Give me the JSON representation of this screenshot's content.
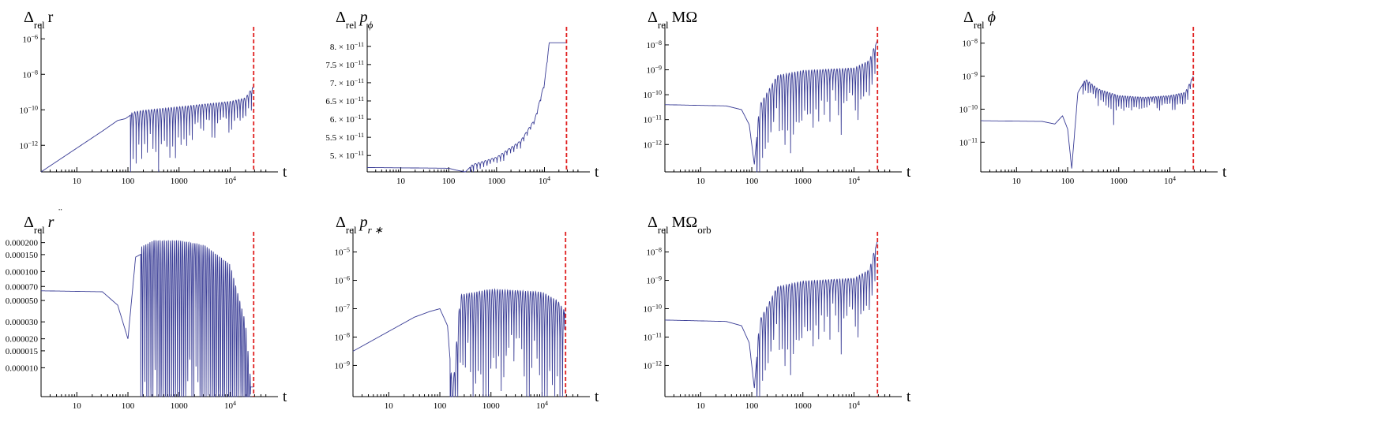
{
  "charts": [
    {
      "id": "panel-delta-r",
      "title_main": "Δ",
      "title_sub": "rel",
      "title_rest": "r",
      "title_italic": false,
      "title_decor": "none",
      "xlabel": "t",
      "scale": "log",
      "yticks": [
        {
          "v": -6,
          "m": "10",
          "e": "−6"
        },
        {
          "v": -8,
          "m": "10",
          "e": "−8"
        },
        {
          "v": -10,
          "m": "10",
          "e": "−10"
        },
        {
          "v": -12,
          "m": "10",
          "e": "−12"
        }
      ],
      "xticks": [
        {
          "v": 1,
          "label": "10"
        },
        {
          "v": 2,
          "label": "100"
        },
        {
          "v": 3,
          "label": "1000"
        },
        {
          "v": 4,
          "label": "10",
          "e": "4"
        }
      ],
      "ymin": -13.5,
      "ymax": -5.5,
      "xmin": 0.3,
      "xmax": 4.75,
      "vline": 4.46,
      "keypoints": [
        [
          0.3,
          -13.5
        ],
        [
          1.5,
          -11.2
        ],
        [
          1.8,
          -10.6
        ],
        [
          1.95,
          -10.5
        ],
        [
          2.1,
          -10.2
        ],
        [
          2.3,
          -10.1
        ],
        [
          3,
          -9.9
        ],
        [
          4,
          -9.6
        ],
        [
          4.3,
          -9.4
        ],
        [
          4.46,
          -8.7
        ]
      ],
      "osc": [
        {
          "from": 2.05,
          "to": 4.44,
          "period": 0.055,
          "amp": 1.5,
          "grow": 0.6
        }
      ]
    },
    {
      "id": "panel-delta-pphi",
      "title_main": "Δ",
      "title_sub": "rel",
      "title_rest": "p",
      "title_sub2": "ϕ",
      "title_italic": true,
      "title_decor": "none",
      "xlabel": "t",
      "scale": "lin",
      "yticks": [
        {
          "v": 8.0,
          "m": "8. × 10",
          "e": "−11"
        },
        {
          "v": 7.5,
          "m": "7.5 × 10",
          "e": "−11"
        },
        {
          "v": 7.0,
          "m": "7. × 10",
          "e": "−11"
        },
        {
          "v": 6.5,
          "m": "6.5 × 10",
          "e": "−11"
        },
        {
          "v": 6.0,
          "m": "6. × 10",
          "e": "−11"
        },
        {
          "v": 5.5,
          "m": "5.5 × 10",
          "e": "−11"
        },
        {
          "v": 5.0,
          "m": "5. × 10",
          "e": "−11"
        }
      ],
      "xticks": [
        {
          "v": 1,
          "label": "10"
        },
        {
          "v": 2,
          "label": "100"
        },
        {
          "v": 3,
          "label": "1000"
        },
        {
          "v": 4,
          "label": "10",
          "e": "4"
        }
      ],
      "ymin": 4.55,
      "ymax": 8.45,
      "xmin": 0.3,
      "xmax": 4.75,
      "vline": 4.46,
      "keypoints": [
        [
          0.3,
          4.67
        ],
        [
          2,
          4.65
        ],
        [
          2.15,
          4.6
        ],
        [
          2.35,
          4.55
        ],
        [
          2.5,
          4.75
        ],
        [
          3,
          4.95
        ],
        [
          3.5,
          5.4
        ],
        [
          3.8,
          6.0
        ],
        [
          4.0,
          7.0
        ],
        [
          4.1,
          8.1
        ]
      ],
      "osc": [
        {
          "from": 2.45,
          "to": 4.1,
          "period": 0.07,
          "amp": 0.12,
          "grow": 0.5
        }
      ]
    },
    {
      "id": "panel-delta-momega",
      "title_main": "Δ",
      "title_sub": "rel",
      "title_rest": "MΩ",
      "title_italic": false,
      "title_decor": "none",
      "xlabel": "t",
      "scale": "log",
      "yticks": [
        {
          "v": -8,
          "m": "10",
          "e": "−8"
        },
        {
          "v": -9,
          "m": "10",
          "e": "−9"
        },
        {
          "v": -10,
          "m": "10",
          "e": "−10"
        },
        {
          "v": -11,
          "m": "10",
          "e": "−11"
        },
        {
          "v": -12,
          "m": "10",
          "e": "−12"
        }
      ],
      "xticks": [
        {
          "v": 1,
          "label": "10"
        },
        {
          "v": 2,
          "label": "100"
        },
        {
          "v": 3,
          "label": "1000"
        },
        {
          "v": 4,
          "label": "10",
          "e": "4"
        }
      ],
      "ymin": -13.1,
      "ymax": -7.4,
      "xmin": 0.3,
      "xmax": 4.75,
      "vline": 4.46,
      "keypoints": [
        [
          0.3,
          -10.4
        ],
        [
          1.5,
          -10.45
        ],
        [
          1.8,
          -10.6
        ],
        [
          1.95,
          -11.2
        ],
        [
          2.05,
          -12.8
        ],
        [
          2.15,
          -10.5
        ],
        [
          2.5,
          -9.3
        ],
        [
          3,
          -9.1
        ],
        [
          4,
          -9.0
        ],
        [
          4.3,
          -8.7
        ],
        [
          4.46,
          -7.8
        ]
      ],
      "osc": [
        {
          "from": 2.1,
          "to": 4.42,
          "period": 0.055,
          "amp": 1.5,
          "grow": 0.5
        }
      ]
    },
    {
      "id": "panel-delta-phi",
      "title_main": "Δ",
      "title_sub": "rel",
      "title_rest": "ϕ",
      "title_italic": true,
      "title_decor": "none",
      "xlabel": "t",
      "scale": "log",
      "yticks": [
        {
          "v": -8,
          "m": "10",
          "e": "−8"
        },
        {
          "v": -9,
          "m": "10",
          "e": "−9"
        },
        {
          "v": -10,
          "m": "10",
          "e": "−10"
        },
        {
          "v": -11,
          "m": "10",
          "e": "−11"
        }
      ],
      "xticks": [
        {
          "v": 1,
          "label": "10"
        },
        {
          "v": 2,
          "label": "100"
        },
        {
          "v": 3,
          "label": "1000"
        },
        {
          "v": 4,
          "label": "10",
          "e": "4"
        }
      ],
      "ymin": -11.9,
      "ymax": -7.6,
      "xmin": 0.3,
      "xmax": 4.75,
      "vline": 4.46,
      "keypoints": [
        [
          0.3,
          -10.35
        ],
        [
          1.5,
          -10.37
        ],
        [
          1.75,
          -10.45
        ],
        [
          1.9,
          -10.2
        ],
        [
          2.0,
          -10.6
        ],
        [
          2.08,
          -11.8
        ],
        [
          2.2,
          -9.5
        ],
        [
          2.35,
          -9.1
        ],
        [
          2.6,
          -9.4
        ],
        [
          3,
          -9.6
        ],
        [
          3.5,
          -9.65
        ],
        [
          4,
          -9.6
        ],
        [
          4.3,
          -9.5
        ],
        [
          4.46,
          -9.0
        ]
      ],
      "osc": [
        {
          "from": 2.3,
          "to": 4.44,
          "period": 0.05,
          "amp": 0.25,
          "grow": 0.2
        }
      ]
    },
    {
      "id": "panel-delta-rddot",
      "title_main": "Δ",
      "title_sub": "rel",
      "title_rest": "r",
      "title_italic": true,
      "title_decor": "ddot",
      "xlabel": "t",
      "scale": "log",
      "yticks": [
        {
          "v": -3.699,
          "m": "0.000200"
        },
        {
          "v": -3.824,
          "m": "0.000150"
        },
        {
          "v": -4.0,
          "m": "0.000100"
        },
        {
          "v": -4.155,
          "m": "0.000070"
        },
        {
          "v": -4.301,
          "m": "0.000050"
        },
        {
          "v": -4.523,
          "m": "0.000030"
        },
        {
          "v": -4.699,
          "m": "0.000020"
        },
        {
          "v": -4.824,
          "m": "0.000015"
        },
        {
          "v": -5.0,
          "m": "0.000010"
        }
      ],
      "xticks": [
        {
          "v": 1,
          "label": "10"
        },
        {
          "v": 2,
          "label": "100"
        },
        {
          "v": 3,
          "label": "1000"
        },
        {
          "v": 4,
          "label": "10",
          "e": "4"
        }
      ],
      "ymin": -5.3,
      "ymax": -3.62,
      "xmin": 0.3,
      "xmax": 4.75,
      "vline": 4.46,
      "keypoints": [
        [
          0.3,
          -4.2
        ],
        [
          1.5,
          -4.21
        ],
        [
          1.8,
          -4.35
        ],
        [
          2.0,
          -4.7
        ],
        [
          2.15,
          -3.85
        ],
        [
          2.5,
          -3.75
        ],
        [
          3,
          -3.75
        ],
        [
          3.5,
          -3.8
        ],
        [
          4,
          -4.0
        ],
        [
          4.3,
          -4.6
        ],
        [
          4.4,
          -5.2
        ]
      ],
      "osc": [
        {
          "from": 2.25,
          "to": 4.4,
          "period": 0.04,
          "amp": 1.5,
          "grow": 0.0
        }
      ]
    },
    {
      "id": "panel-delta-prstar",
      "title_main": "Δ",
      "title_sub": "rel",
      "title_rest": "p",
      "title_sub2": "r ∗",
      "title_italic": true,
      "title_decor": "none",
      "xlabel": "t",
      "scale": "log",
      "yticks": [
        {
          "v": -5,
          "m": "10",
          "e": "−5"
        },
        {
          "v": -6,
          "m": "10",
          "e": "−6"
        },
        {
          "v": -7,
          "m": "10",
          "e": "−7"
        },
        {
          "v": -8,
          "m": "10",
          "e": "−8"
        },
        {
          "v": -9,
          "m": "10",
          "e": "−9"
        }
      ],
      "xticks": [
        {
          "v": 1,
          "label": "10"
        },
        {
          "v": 2,
          "label": "100"
        },
        {
          "v": 3,
          "label": "1000"
        },
        {
          "v": 4,
          "label": "10",
          "e": "4"
        }
      ],
      "ymin": -10.1,
      "ymax": -4.4,
      "xmin": 0.3,
      "xmax": 4.75,
      "vline": 4.46,
      "keypoints": [
        [
          0.3,
          -8.5
        ],
        [
          1.5,
          -7.3
        ],
        [
          1.8,
          -7.1
        ],
        [
          2.0,
          -7.0
        ],
        [
          2.15,
          -7.6
        ],
        [
          2.25,
          -10.0
        ],
        [
          2.4,
          -6.6
        ],
        [
          3,
          -6.4
        ],
        [
          4,
          -6.5
        ],
        [
          4.3,
          -6.8
        ],
        [
          4.46,
          -7.2
        ]
      ],
      "osc": [
        {
          "from": 2.2,
          "to": 4.44,
          "period": 0.05,
          "amp": 1.8,
          "grow": 0.0
        }
      ]
    },
    {
      "id": "panel-delta-momega-orb",
      "title_main": "Δ",
      "title_sub": "rel",
      "title_rest": "MΩ",
      "title_sub2": "orb",
      "title_italic": false,
      "title_decor": "none",
      "xlabel": "t",
      "scale": "log",
      "yticks": [
        {
          "v": -8,
          "m": "10",
          "e": "−8"
        },
        {
          "v": -9,
          "m": "10",
          "e": "−9"
        },
        {
          "v": -10,
          "m": "10",
          "e": "−10"
        },
        {
          "v": -11,
          "m": "10",
          "e": "−11"
        },
        {
          "v": -12,
          "m": "10",
          "e": "−12"
        }
      ],
      "xticks": [
        {
          "v": 1,
          "label": "10"
        },
        {
          "v": 2,
          "label": "100"
        },
        {
          "v": 3,
          "label": "1000"
        },
        {
          "v": 4,
          "label": "10",
          "e": "4"
        }
      ],
      "ymin": -13.1,
      "ymax": -7.4,
      "xmin": 0.3,
      "xmax": 4.75,
      "vline": 4.46,
      "keypoints": [
        [
          0.3,
          -10.4
        ],
        [
          1.5,
          -10.45
        ],
        [
          1.8,
          -10.6
        ],
        [
          1.95,
          -11.2
        ],
        [
          2.05,
          -12.8
        ],
        [
          2.15,
          -10.5
        ],
        [
          2.5,
          -9.3
        ],
        [
          3,
          -9.1
        ],
        [
          4,
          -9.0
        ],
        [
          4.3,
          -8.7
        ],
        [
          4.46,
          -7.6
        ]
      ],
      "osc": [
        {
          "from": 2.1,
          "to": 4.42,
          "period": 0.055,
          "amp": 1.5,
          "grow": 0.5
        }
      ]
    }
  ],
  "colors": {
    "curve": "#3a3d96",
    "vline": "#e02020",
    "axis": "#000000"
  }
}
